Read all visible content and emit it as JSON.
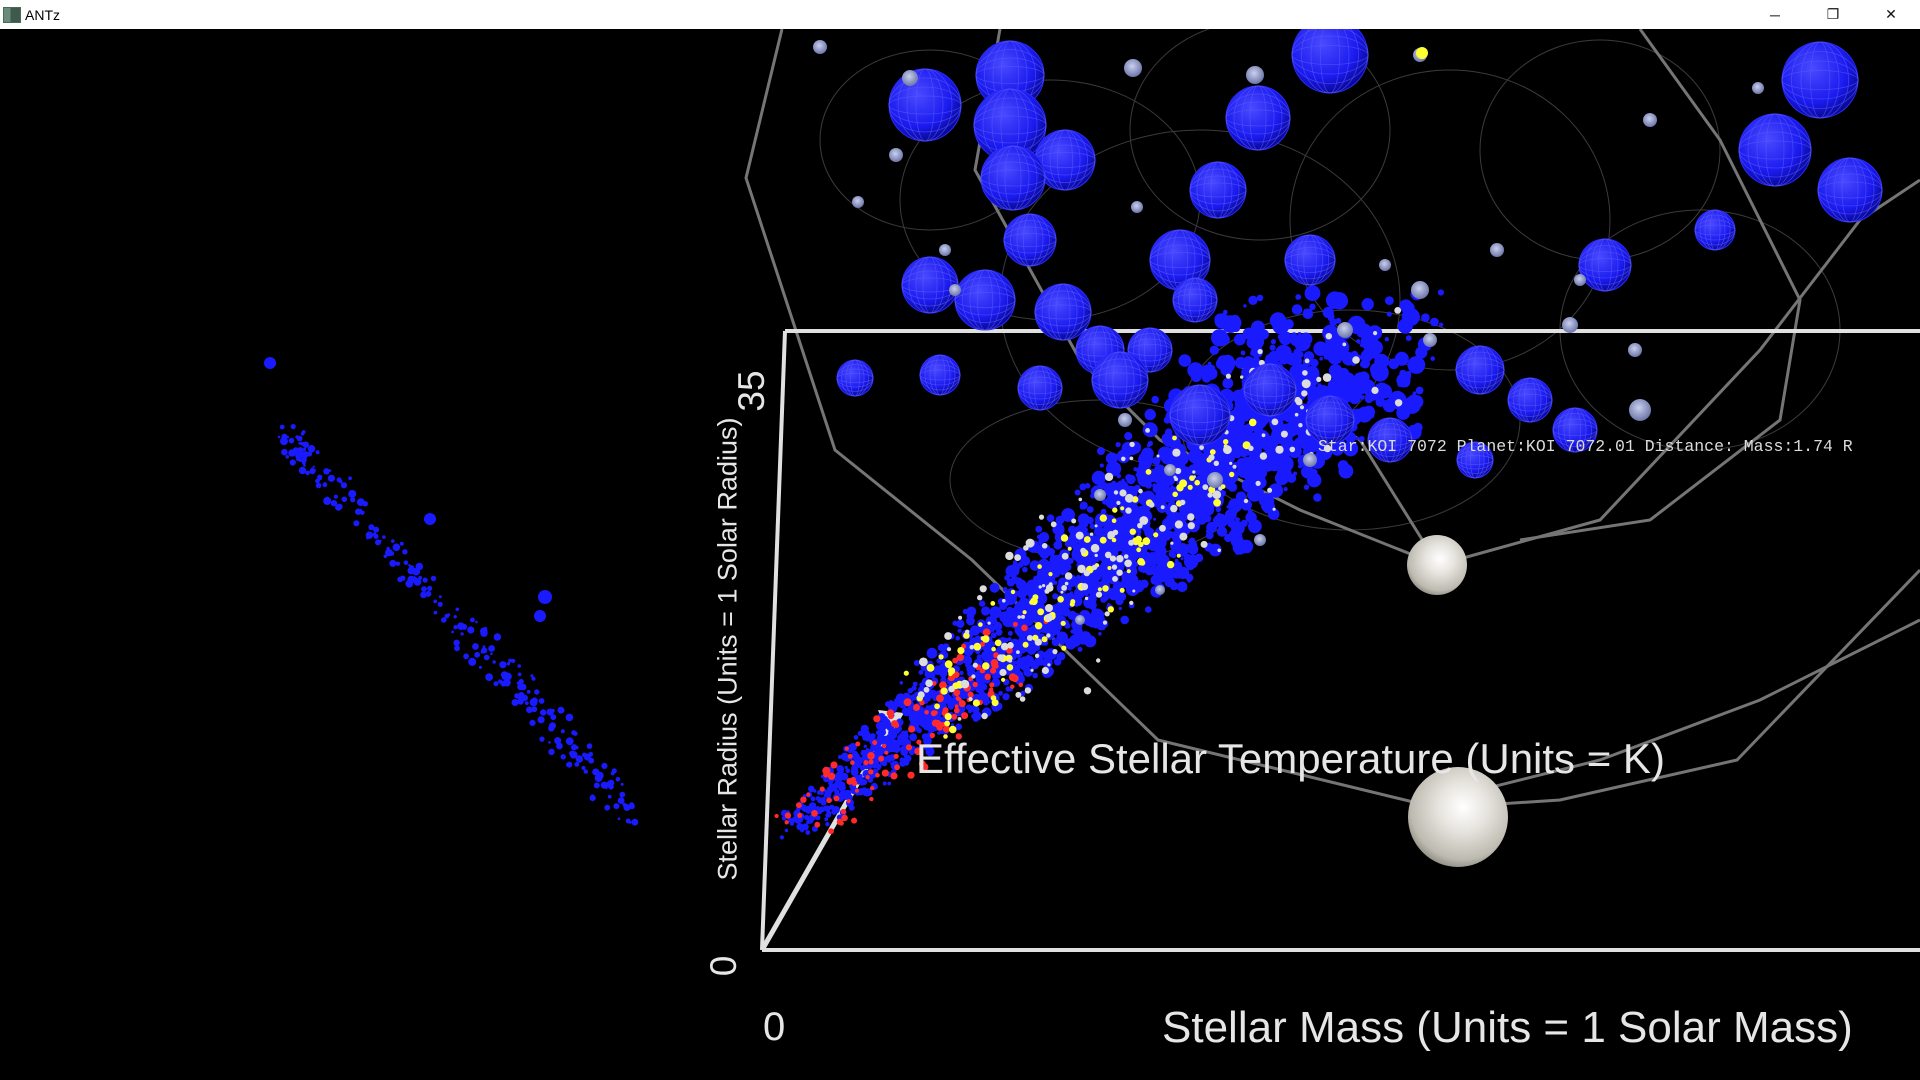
{
  "window": {
    "title": "ANTz",
    "controls": {
      "minimize": "─",
      "restore": "❐",
      "close": "✕"
    }
  },
  "plot": {
    "axis_y_label": "Stellar Radius (Units = 1 Solar Radius)",
    "axis_y_max_tick": "35",
    "axis_y_min_tick": "0",
    "axis_x_label": "Stellar Mass (Units = 1 Solar Mass)",
    "axis_x_min_tick": "0",
    "axis_z_label": "Effective Stellar Temperature (Units = K)"
  },
  "hover_label": "Star:KOI 7072 Planet:KOI 7072.01 Distance: Mass:1.74 R",
  "colors": {
    "background": "#000000",
    "star_blue": "#1a1aff",
    "star_white": "#dcdcdc",
    "star_yellow": "#ffff33",
    "star_red": "#ff2a2a",
    "axis_frame": "#e0e0e0",
    "orbit_lines": "#8a8a8a"
  }
}
